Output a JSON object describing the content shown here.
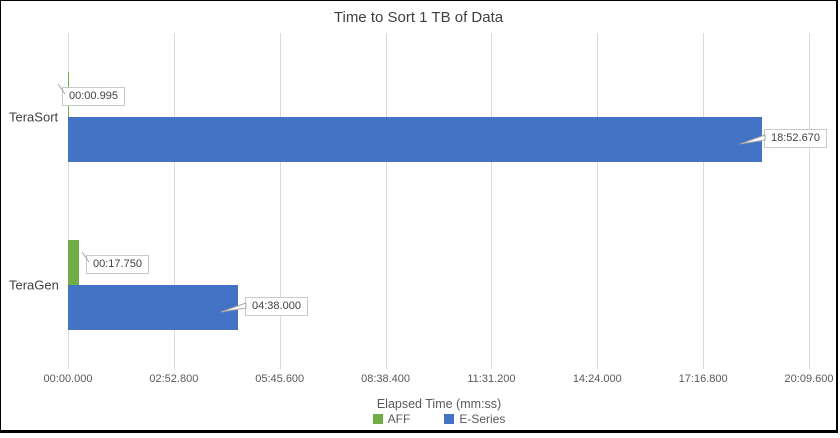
{
  "chart_data": {
    "type": "bar",
    "orientation": "horizontal",
    "title": "Time to Sort 1 TB of Data",
    "xlabel": "Elapsed Time (mm:ss)",
    "categories": [
      "TeraSort",
      "TeraGen"
    ],
    "series": [
      {
        "name": "AFF",
        "color": "#70AD47",
        "values_seconds": [
          0.995,
          17.75
        ],
        "labels": [
          "00:00.995",
          "00:17.750"
        ]
      },
      {
        "name": "E-Series",
        "color": "#4472C4",
        "values_seconds": [
          1132.67,
          278.0
        ],
        "labels": [
          "18:52.670",
          "04:38.000"
        ]
      }
    ],
    "x_ticks": [
      {
        "seconds": 0.0,
        "label": "00:00.000"
      },
      {
        "seconds": 172.8,
        "label": "02:52.800"
      },
      {
        "seconds": 345.6,
        "label": "05:45.600"
      },
      {
        "seconds": 518.4,
        "label": "08:38.400"
      },
      {
        "seconds": 691.2,
        "label": "11:31.200"
      },
      {
        "seconds": 864.0,
        "label": "14:24.000"
      },
      {
        "seconds": 1036.8,
        "label": "17:16.800"
      },
      {
        "seconds": 1209.6,
        "label": "20:09.600"
      }
    ],
    "xlim_seconds": [
      0,
      1209.6
    ],
    "grid": true,
    "legend_position": "bottom",
    "colors": {
      "gridline": "#D9D9D9",
      "title_text": "#404040",
      "tick_text": "#595959",
      "category_text": "#404040",
      "callout_border": "#C9C9C9",
      "callout_text": "#404040"
    }
  }
}
